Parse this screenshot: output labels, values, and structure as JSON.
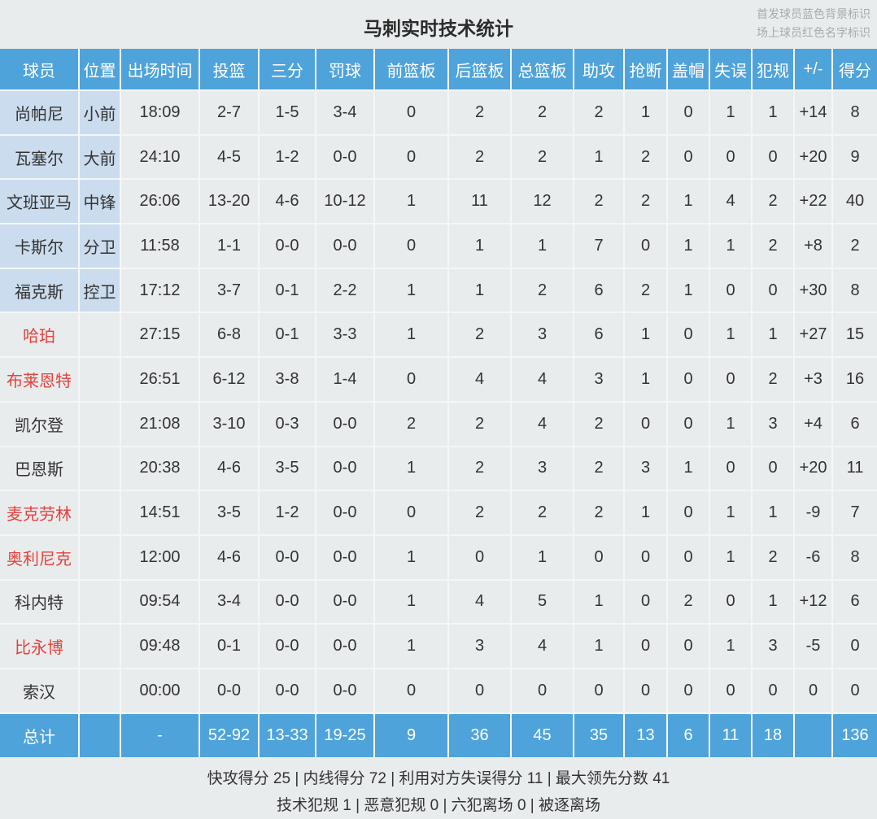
{
  "page": {
    "title": "马刺实时技术统计",
    "legend": [
      "首发球员蓝色背景标识",
      "场上球员红色名字标识"
    ]
  },
  "colors": {
    "header_blue": "#4fa3db",
    "starter_bg": "#cbdcee",
    "on_court_red": "#e8413c",
    "page_bg": "#e9eced",
    "legend_gray": "#a6abaf",
    "text": "#333333"
  },
  "table": {
    "columns": [
      "球员",
      "位置",
      "出场时间",
      "投篮",
      "三分",
      "罚球",
      "前篮板",
      "后篮板",
      "总篮板",
      "助攻",
      "抢断",
      "盖帽",
      "失误",
      "犯规",
      "+/-",
      "得分"
    ],
    "players": [
      {
        "name": "尚帕尼",
        "pos": "小前",
        "starter": true,
        "on_court": false,
        "stats": [
          "18:09",
          "2-7",
          "1-5",
          "3-4",
          "0",
          "2",
          "2",
          "2",
          "1",
          "0",
          "1",
          "1",
          "+14",
          "8"
        ]
      },
      {
        "name": "瓦塞尔",
        "pos": "大前",
        "starter": true,
        "on_court": false,
        "stats": [
          "24:10",
          "4-5",
          "1-2",
          "0-0",
          "0",
          "2",
          "2",
          "1",
          "2",
          "0",
          "0",
          "0",
          "+20",
          "9"
        ]
      },
      {
        "name": "文班亚马",
        "pos": "中锋",
        "starter": true,
        "on_court": false,
        "stats": [
          "26:06",
          "13-20",
          "4-6",
          "10-12",
          "1",
          "11",
          "12",
          "2",
          "2",
          "1",
          "4",
          "2",
          "+22",
          "40"
        ]
      },
      {
        "name": "卡斯尔",
        "pos": "分卫",
        "starter": true,
        "on_court": false,
        "stats": [
          "11:58",
          "1-1",
          "0-0",
          "0-0",
          "0",
          "1",
          "1",
          "7",
          "0",
          "1",
          "1",
          "2",
          "+8",
          "2"
        ]
      },
      {
        "name": "福克斯",
        "pos": "控卫",
        "starter": true,
        "on_court": false,
        "stats": [
          "17:12",
          "3-7",
          "0-1",
          "2-2",
          "1",
          "1",
          "2",
          "6",
          "2",
          "1",
          "0",
          "0",
          "+30",
          "8"
        ]
      },
      {
        "name": "哈珀",
        "pos": "",
        "starter": false,
        "on_court": true,
        "stats": [
          "27:15",
          "6-8",
          "0-1",
          "3-3",
          "1",
          "2",
          "3",
          "6",
          "1",
          "0",
          "1",
          "1",
          "+27",
          "15"
        ]
      },
      {
        "name": "布莱恩特",
        "pos": "",
        "starter": false,
        "on_court": true,
        "stats": [
          "26:51",
          "6-12",
          "3-8",
          "1-4",
          "0",
          "4",
          "4",
          "3",
          "1",
          "0",
          "0",
          "2",
          "+3",
          "16"
        ]
      },
      {
        "name": "凯尔登",
        "pos": "",
        "starter": false,
        "on_court": false,
        "stats": [
          "21:08",
          "3-10",
          "0-3",
          "0-0",
          "2",
          "2",
          "4",
          "2",
          "0",
          "0",
          "1",
          "3",
          "+4",
          "6"
        ]
      },
      {
        "name": "巴恩斯",
        "pos": "",
        "starter": false,
        "on_court": false,
        "stats": [
          "20:38",
          "4-6",
          "3-5",
          "0-0",
          "1",
          "2",
          "3",
          "2",
          "3",
          "1",
          "0",
          "0",
          "+20",
          "11"
        ]
      },
      {
        "name": "麦克劳林",
        "pos": "",
        "starter": false,
        "on_court": true,
        "stats": [
          "14:51",
          "3-5",
          "1-2",
          "0-0",
          "0",
          "2",
          "2",
          "2",
          "1",
          "0",
          "1",
          "1",
          "-9",
          "7"
        ]
      },
      {
        "name": "奥利尼克",
        "pos": "",
        "starter": false,
        "on_court": true,
        "stats": [
          "12:00",
          "4-6",
          "0-0",
          "0-0",
          "1",
          "0",
          "1",
          "0",
          "0",
          "0",
          "1",
          "2",
          "-6",
          "8"
        ]
      },
      {
        "name": "科内特",
        "pos": "",
        "starter": false,
        "on_court": false,
        "stats": [
          "09:54",
          "3-4",
          "0-0",
          "0-0",
          "1",
          "4",
          "5",
          "1",
          "0",
          "2",
          "0",
          "1",
          "+12",
          "6"
        ]
      },
      {
        "name": "比永博",
        "pos": "",
        "starter": false,
        "on_court": true,
        "stats": [
          "09:48",
          "0-1",
          "0-0",
          "0-0",
          "1",
          "3",
          "4",
          "1",
          "0",
          "0",
          "1",
          "3",
          "-5",
          "0"
        ]
      },
      {
        "name": "索汉",
        "pos": "",
        "starter": false,
        "on_court": false,
        "stats": [
          "00:00",
          "0-0",
          "0-0",
          "0-0",
          "0",
          "0",
          "0",
          "0",
          "0",
          "0",
          "0",
          "0",
          "0",
          "0"
        ]
      }
    ],
    "total": {
      "label": "总计",
      "pos": "",
      "stats": [
        "-",
        "52-92",
        "13-33",
        "19-25",
        "9",
        "36",
        "45",
        "35",
        "13",
        "6",
        "11",
        "18",
        "",
        "136"
      ]
    }
  },
  "footer": {
    "line1": "快攻得分 25 | 内线得分 72 | 利用对方失误得分 11 | 最大领先分数 41",
    "line2": "技术犯规 1 | 恶意犯规 0 | 六犯离场 0 | 被逐离场"
  }
}
